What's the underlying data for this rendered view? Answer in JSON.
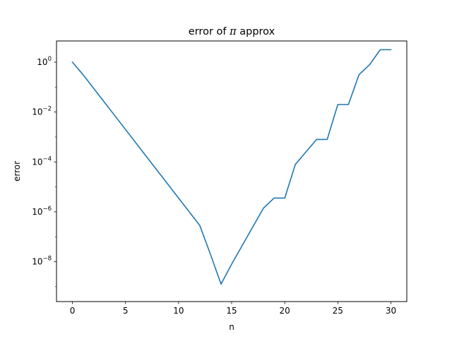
{
  "chart_data": {
    "type": "line",
    "title": {
      "before": "error of ",
      "symbol": "π",
      "after": " approx"
    },
    "xlabel": "n",
    "ylabel": "error",
    "xlim": [
      -1.5,
      31.5
    ],
    "ylim_exponent": [
      -9.6,
      0.85
    ],
    "yscale": "log",
    "grid": false,
    "x_ticks": [
      0,
      5,
      10,
      15,
      20,
      25,
      30
    ],
    "y_tick_labels": [
      {
        "base": "10",
        "exp": "0",
        "value": 1
      },
      {
        "base": "10",
        "exp": "−2",
        "value": 0.01
      },
      {
        "base": "10",
        "exp": "−4",
        "value": 0.0001
      },
      {
        "base": "10",
        "exp": "−6",
        "value": 1e-06
      },
      {
        "base": "10",
        "exp": "−8",
        "value": 1e-08
      }
    ],
    "series": [
      {
        "color": "#1f77b4",
        "x": [
          0,
          1,
          2,
          3,
          4,
          5,
          6,
          7,
          8,
          9,
          10,
          11,
          12,
          13,
          14,
          15,
          16,
          17,
          18,
          19,
          20,
          21,
          22,
          23,
          24,
          25,
          26,
          27,
          28,
          29,
          30
        ],
        "y": [
          1.0,
          0.316,
          0.089,
          0.0251,
          0.00708,
          0.002,
          0.000562,
          0.000158,
          4.47e-05,
          1.26e-05,
          3.55e-06,
          1e-06,
          2.82e-07,
          2e-08,
          1.26e-09,
          7.94e-09,
          4.47e-08,
          2.51e-07,
          1.41e-06,
          3.55e-06,
          3.55e-06,
          7.94e-05,
          0.000251,
          0.000794,
          0.000794,
          0.02,
          0.02,
          0.316,
          0.794,
          3.16,
          3.16
        ]
      }
    ]
  }
}
